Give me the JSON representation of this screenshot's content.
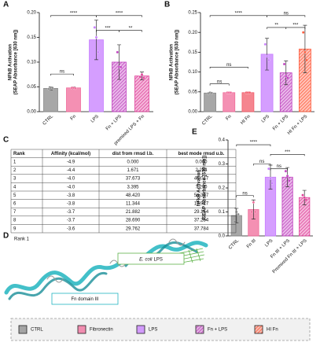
{
  "chart_data": [
    {
      "type": "bar",
      "label": "A",
      "y_label": [
        "NFkB Activation",
        "(SEAP Absorbance [630 nm])"
      ],
      "categories": [
        "CTRL",
        "Fn",
        "LPS",
        "Fn + LPS",
        "premixed LPS + Fn"
      ],
      "values": [
        0.047,
        0.048,
        0.145,
        0.1,
        0.072
      ],
      "errors": [
        0.003,
        0.002,
        0.04,
        0.035,
        0.008
      ],
      "points": [
        [
          0.046,
          0.047,
          0.048
        ],
        [
          0.048,
          0.048,
          0.047
        ],
        [
          0.17,
          0.15,
          0.12
        ],
        [
          0.12,
          0.09,
          0.09
        ],
        [
          0.07,
          0.075,
          0.068
        ]
      ],
      "colors": [
        "#8a8a8a",
        "#f06b9a",
        "#c77dff",
        "#c040c0",
        "#e0409a"
      ],
      "hatched": [
        false,
        false,
        false,
        true,
        true
      ],
      "ylim": [
        0,
        0.2
      ],
      "yticks": [
        {
          "value": 0,
          "label": "0.00"
        },
        {
          "value": 0.05,
          "label": "0.05"
        },
        {
          "value": 0.1,
          "label": "0.10"
        },
        {
          "value": 0.15,
          "label": "0.15"
        },
        {
          "value": 0.2,
          "label": "0.20"
        }
      ],
      "brackets": [
        "ns",
        "****",
        "****",
        "***",
        "**"
      ]
    },
    {
      "type": "bar",
      "label": "B",
      "y_label": [
        "NFkB Activation",
        "(SEAP Absorbance [630 nm])"
      ],
      "categories": [
        "CTRL",
        "Fn",
        "HI Fn",
        "LPS",
        "Fn + LPS",
        "HI Fn + LPS"
      ],
      "values": [
        0.047,
        0.048,
        0.048,
        0.145,
        0.098,
        0.158
      ],
      "errors": [
        0.002,
        0.001,
        0.001,
        0.04,
        0.03,
        0.06
      ],
      "points": [
        [
          0.046,
          0.048,
          0.047
        ],
        [
          0.048,
          0.048,
          0.048
        ],
        [
          0.048,
          0.048,
          0.048
        ],
        [
          0.17,
          0.14,
          0.13
        ],
        [
          0.12,
          0.09,
          0.085
        ],
        [
          0.2,
          0.15,
          0.13
        ]
      ],
      "colors": [
        "#8a8a8a",
        "#f06b9a",
        "#f25c6a",
        "#c77dff",
        "#c040c0",
        "#ff5a3c"
      ],
      "hatched": [
        false,
        false,
        false,
        false,
        true,
        true
      ],
      "ylim": [
        0,
        0.25
      ],
      "yticks": [
        {
          "value": 0,
          "label": "0.00"
        },
        {
          "value": 0.05,
          "label": "0.05"
        },
        {
          "value": 0.1,
          "label": "0.10"
        },
        {
          "value": 0.15,
          "label": "0.15"
        },
        {
          "value": 0.2,
          "label": "0.20"
        },
        {
          "value": 0.25,
          "label": "0.25"
        }
      ],
      "brackets": [
        "ns",
        "ns",
        "****",
        "ns",
        "**",
        "***"
      ]
    },
    {
      "type": "bar",
      "label": "E",
      "y_label": [
        "NFkB Activation",
        "(SEAP Absorbance [630 nm])"
      ],
      "categories": [
        "CTRL",
        "Fn III",
        "LPS",
        "Fn III + LPS",
        "Premixed Fn III + LPS"
      ],
      "values": [
        0.085,
        0.11,
        0.245,
        0.245,
        0.16
      ],
      "errors": [
        0.03,
        0.04,
        0.05,
        0.04,
        0.03
      ],
      "points": [
        [
          0.06,
          0.1,
          0.09
        ],
        [
          0.1,
          0.14,
          0.1
        ],
        [
          0.28,
          0.24,
          0.22
        ],
        [
          0.27,
          0.25,
          0.23
        ],
        [
          0.17,
          0.16,
          0.15
        ]
      ],
      "colors": [
        "#8a8a8a",
        "#f06b9a",
        "#c77dff",
        "#c040c0",
        "#e0409a"
      ],
      "hatched": [
        false,
        false,
        false,
        true,
        true
      ],
      "ylim": [
        0,
        0.4
      ],
      "yticks": [
        {
          "value": 0,
          "label": "0.0"
        },
        {
          "value": 0.1,
          "label": "0.1"
        },
        {
          "value": 0.2,
          "label": "0.2"
        },
        {
          "value": 0.3,
          "label": "0.3"
        },
        {
          "value": 0.4,
          "label": "0.4"
        }
      ],
      "brackets": [
        "ns",
        "ns",
        "****",
        "ns",
        "***"
      ]
    }
  ],
  "table": {
    "label": "C",
    "header": [
      "Rank",
      "Affinity (kcal/mol)",
      "dist from rmsd l.b.",
      "best mode rmsd u.b."
    ],
    "rows": [
      [
        "1",
        "-4.9",
        "0.000",
        "0.000"
      ],
      [
        "2",
        "-4.4",
        "1.671",
        "2.284"
      ],
      [
        "3",
        "-4.0",
        "37.673",
        "46.047"
      ],
      [
        "4",
        "-4.0",
        "3.395",
        "7.290"
      ],
      [
        "5",
        "-3.8",
        "48.420",
        "56.387"
      ],
      [
        "6",
        "-3.8",
        "11.344",
        "17.927"
      ],
      [
        "7",
        "-3.7",
        "21.882",
        "29.154"
      ],
      [
        "8",
        "-3.7",
        "28.690",
        "37.254"
      ],
      [
        "9",
        "-3.6",
        "29.762",
        "37.784"
      ]
    ]
  },
  "diagram": {
    "label": "D",
    "title": "Rank 1",
    "fn_label": "Fn domain III",
    "lps_species": "E. coli",
    "lps_name": "LPS"
  },
  "legend": [
    {
      "name": "CTRL",
      "color": "#8a8a8a",
      "hatched": false
    },
    {
      "name": "Fibronectin",
      "color": "#f06b9a",
      "hatched": false
    },
    {
      "name": "LPS",
      "color": "#c77dff",
      "hatched": false
    },
    {
      "name": "Fn + LPS",
      "color": "#c040c0",
      "hatched": true
    },
    {
      "name": "HI Fn",
      "color": "#ff5a3c",
      "hatched": true
    }
  ]
}
